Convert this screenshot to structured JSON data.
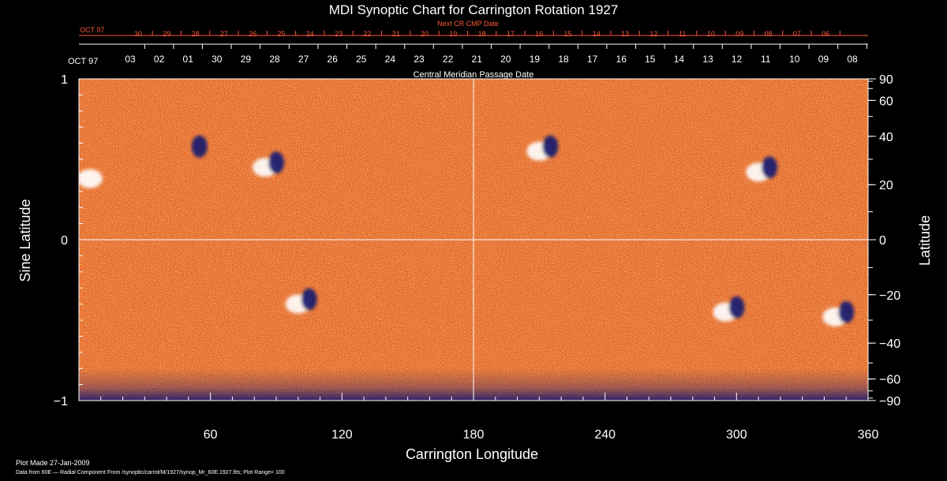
{
  "chart_data": {
    "type": "heatmap",
    "title": "MDI Synoptic Chart for Carrington Rotation 1927",
    "xlabel": "Carrington Longitude",
    "ylabel_left": "Sine Latitude",
    "ylabel_right": "Latitude",
    "top_axis_label": "Central Meridian Passage Date",
    "top2_axis_label": "Next CR CMP Date",
    "xlim": [
      0,
      360
    ],
    "ylim": [
      -1,
      1
    ],
    "x_ticks": [
      60,
      120,
      180,
      240,
      300,
      360
    ],
    "y_ticks_left": [
      "1",
      "0",
      "−1"
    ],
    "y_ticks_right": [
      90,
      60,
      40,
      20,
      0,
      -20,
      -40,
      -60,
      -90
    ],
    "cmp_month": "OCT 97",
    "cmp_dates": [
      "03",
      "02",
      "01",
      "30",
      "29",
      "28",
      "27",
      "26",
      "25",
      "24",
      "23",
      "22",
      "21",
      "20",
      "19",
      "18",
      "17",
      "16",
      "15",
      "14",
      "13",
      "12",
      "11",
      "10",
      "09",
      "08"
    ],
    "next_cmp_month": "OCT 97",
    "next_cmp_dates": [
      "30",
      "29",
      "28",
      "27",
      "26",
      "25",
      "24",
      "23",
      "22",
      "21",
      "20",
      "19",
      "18",
      "17",
      "16",
      "15",
      "14",
      "13",
      "12",
      "11",
      "10",
      "09",
      "08",
      "07",
      "06"
    ],
    "colorscale": {
      "negative": "#1a1a6e",
      "zero": "#e65a1e",
      "positive": "#ffffff"
    },
    "grid": "lines at longitude 180 and sine latitude 0",
    "features": [
      {
        "lon": 100,
        "sinlat": -0.4,
        "polarity": "bipolar"
      },
      {
        "lon": 295,
        "sinlat": -0.45,
        "polarity": "bipolar"
      },
      {
        "lon": 345,
        "sinlat": -0.48,
        "polarity": "bipolar"
      },
      {
        "lon": 55,
        "sinlat": 0.55,
        "polarity": "negative"
      },
      {
        "lon": 85,
        "sinlat": 0.45,
        "polarity": "bipolar"
      },
      {
        "lon": 210,
        "sinlat": 0.55,
        "polarity": "bipolar"
      },
      {
        "lon": 310,
        "sinlat": 0.42,
        "polarity": "bipolar"
      },
      {
        "lon": 5,
        "sinlat": 0.38,
        "polarity": "positive"
      }
    ],
    "plot_made": "Plot Made 27-Jan-2009",
    "data_source": "Data from 60E — Radial Component From /synoptic/carrot/M/1927/synop_Mr_60E.1927.fits; Plot Range=  100"
  }
}
